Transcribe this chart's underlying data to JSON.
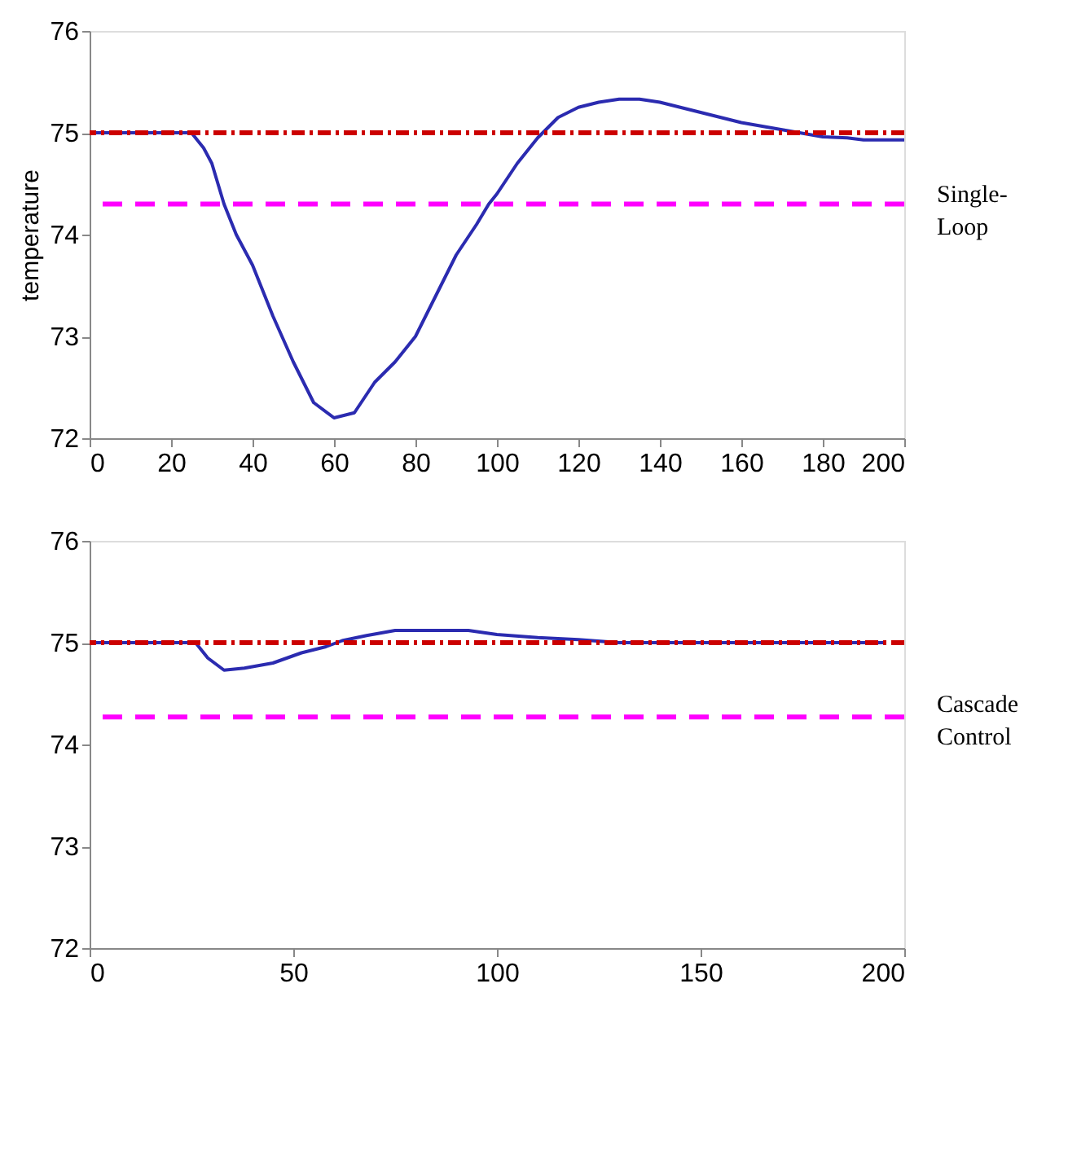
{
  "chart_data": [
    {
      "type": "line",
      "ylabel": "temperature",
      "xlim": [
        0,
        200
      ],
      "ylim": [
        72,
        76
      ],
      "xticks": [
        0,
        20,
        40,
        60,
        80,
        100,
        120,
        140,
        160,
        180,
        200
      ],
      "yticks": [
        72,
        73,
        74,
        75,
        76
      ],
      "grid": false,
      "series": [
        {
          "color": "#2b2bb0",
          "x": [
            0,
            25,
            28,
            30,
            33,
            36,
            40,
            45,
            50,
            55,
            60,
            65,
            70,
            75,
            80,
            85,
            90,
            95,
            98,
            100,
            105,
            110,
            115,
            120,
            125,
            130,
            135,
            140,
            150,
            160,
            170,
            180,
            186,
            190,
            200
          ],
          "values": [
            75,
            75,
            74.85,
            74.7,
            74.3,
            74.0,
            73.7,
            73.2,
            72.75,
            72.35,
            72.2,
            72.25,
            72.55,
            72.75,
            73.0,
            73.4,
            73.8,
            74.1,
            74.3,
            74.4,
            74.7,
            74.95,
            75.15,
            75.25,
            75.3,
            75.33,
            75.33,
            75.3,
            75.2,
            75.1,
            75.03,
            74.96,
            74.95,
            74.93,
            74.93
          ]
        }
      ],
      "ref_lines": [
        {
          "axis": "y",
          "value": 75,
          "color": "#cc0000",
          "line_style": "dotted"
        },
        {
          "axis": "y",
          "value": 74.3,
          "color": "#ff00ff",
          "line_style": "dashed"
        }
      ],
      "annotations": [
        "Single-Loop"
      ]
    },
    {
      "type": "line",
      "xlim": [
        0,
        200
      ],
      "ylim": [
        72,
        76
      ],
      "xticks": [
        0,
        50,
        100,
        150,
        200
      ],
      "yticks": [
        72,
        73,
        74,
        75,
        76
      ],
      "grid": false,
      "series": [
        {
          "color": "#2b2bb0",
          "x": [
            0,
            26,
            29,
            33,
            38,
            45,
            52,
            58,
            62,
            68,
            75,
            85,
            93,
            100,
            110,
            120,
            130,
            195
          ],
          "values": [
            75,
            75,
            74.85,
            74.73,
            74.75,
            74.8,
            74.9,
            74.96,
            75.02,
            75.07,
            75.12,
            75.12,
            75.12,
            75.08,
            75.05,
            75.03,
            75.0,
            75.0
          ]
        }
      ],
      "ref_lines": [
        {
          "axis": "y",
          "value": 75,
          "color": "#cc0000",
          "line_style": "dotted"
        },
        {
          "axis": "y",
          "value": 74.27,
          "color": "#ff00ff",
          "line_style": "dashed"
        }
      ],
      "annotations": [
        "Cascade Control"
      ]
    }
  ]
}
